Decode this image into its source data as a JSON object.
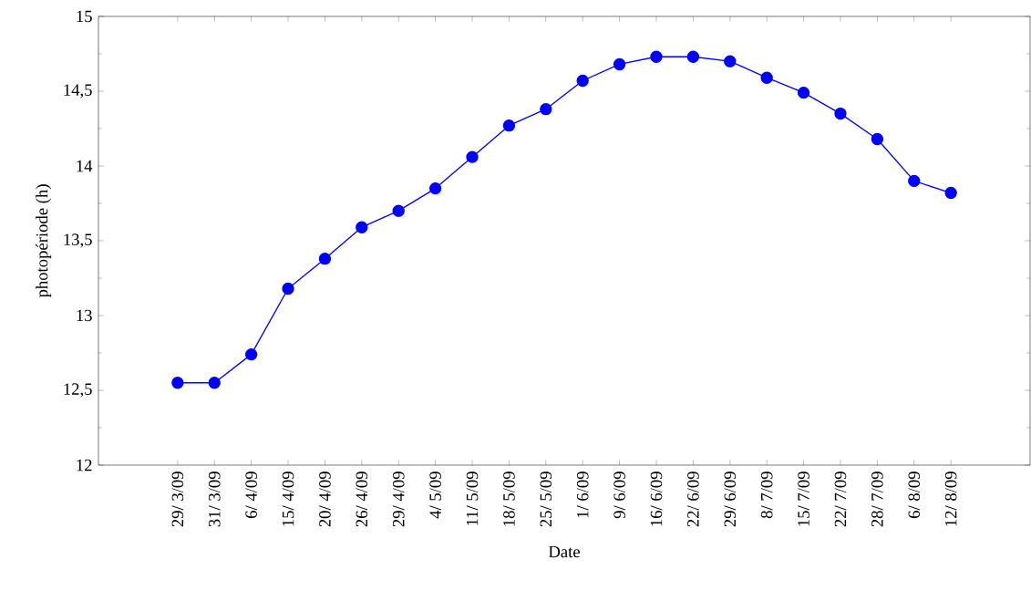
{
  "chart_data": {
    "type": "line",
    "xlabel": "Date",
    "ylabel": "photopériode (h)",
    "categories": [
      "29/ 3/09",
      "31/ 3/09",
      "6/ 4/09",
      "15/ 4/09",
      "20/ 4/09",
      "26/ 4/09",
      "29/ 4/09",
      "4/ 5/09",
      "11/ 5/09",
      "18/ 5/09",
      "25/ 5/09",
      "1/ 6/09",
      "9/ 6/09",
      "16/ 6/09",
      "22/ 6/09",
      "29/ 6/09",
      "8/ 7/09",
      "15/ 7/09",
      "22/ 7/09",
      "28/ 7/09",
      "6/ 8/09",
      "12/ 8/09"
    ],
    "values": [
      12.55,
      12.55,
      12.74,
      13.18,
      13.38,
      13.59,
      13.7,
      13.85,
      14.06,
      14.27,
      14.38,
      14.57,
      14.68,
      14.73,
      14.73,
      14.7,
      14.59,
      14.49,
      14.35,
      14.18,
      13.9,
      13.82
    ],
    "color": "#0000ff",
    "marker": "circle",
    "line_style": "solid",
    "ylim": [
      12,
      15
    ],
    "yticks": [
      12,
      {
        "value": 12.5,
        "label": "12,5"
      },
      13,
      {
        "value": 13.5,
        "label": "13,5"
      },
      14,
      {
        "value": 14.5,
        "label": "14,5"
      },
      15
    ]
  }
}
